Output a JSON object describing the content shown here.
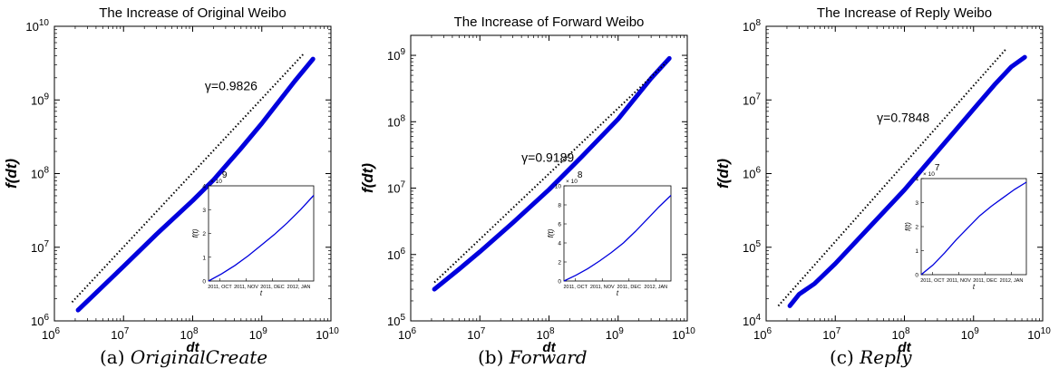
{
  "panels": [
    {
      "caption_label": "(a)",
      "caption_name": "OriginalCreate",
      "chart_data": {
        "type": "line",
        "title": "The Increase of Original Weibo",
        "xlabel": "dt",
        "ylabel": "f(dt)",
        "x_scale": "log",
        "y_scale": "log",
        "xlim": [
          1000000,
          10000000000
        ],
        "ylim": [
          1000000,
          10000000000
        ],
        "xticks": [
          {
            "v": 1000000,
            "base": "10",
            "exp": "6"
          },
          {
            "v": 10000000,
            "base": "10",
            "exp": "7"
          },
          {
            "v": 100000000,
            "base": "10",
            "exp": "8"
          },
          {
            "v": 1000000000,
            "base": "10",
            "exp": "9"
          },
          {
            "v": 10000000000,
            "base": "10",
            "exp": "10"
          }
        ],
        "yticks": [
          {
            "v": 1000000,
            "base": "10",
            "exp": "6"
          },
          {
            "v": 10000000,
            "base": "10",
            "exp": "7"
          },
          {
            "v": 100000000,
            "base": "10",
            "exp": "8"
          },
          {
            "v": 1000000000,
            "base": "10",
            "exp": "9"
          },
          {
            "v": 10000000000,
            "base": "10",
            "exp": "10"
          }
        ],
        "series": [
          {
            "style": "data",
            "color": "#0000dd",
            "x": [
              2200000,
              4000000,
              10000000,
              30000000,
              100000000,
              200000000,
              500000000,
              1000000000,
              3000000000,
              5500000000
            ],
            "y": [
              1400000,
              2400000,
              5500000,
              15000000,
              43000000,
              82000000,
              220000000,
              480000000,
              1800000000,
              3600000000
            ]
          },
          {
            "style": "fit",
            "color": "#000000",
            "x": [
              1800000,
              4000000000
            ],
            "y": [
              1800000,
              4200000000
            ]
          }
        ],
        "annotation": {
          "text": "γ=0.9826",
          "x": 150000000,
          "y": 1350000000
        },
        "inset": {
          "ylabel": "f(t)",
          "xlabel": "t",
          "xticklabels": [
            "2011, OCT",
            "2011, NOV",
            "2011, DEC",
            "2012, JAN"
          ],
          "ylim": [
            0,
            4000000000
          ],
          "y_multiplier": {
            "base": "× 10",
            "exp": "9"
          },
          "yticks": [
            {
              "v": 0,
              "label": "0"
            },
            {
              "v": 1000000000,
              "label": "1"
            },
            {
              "v": 2000000000,
              "label": "2"
            },
            {
              "v": 3000000000,
              "label": "3"
            },
            {
              "v": 4000000000,
              "label": "4"
            }
          ],
          "series_y": [
            0,
            300000000,
            650000000,
            1050000000,
            1500000000,
            1950000000,
            2450000000,
            3000000000,
            3600000000
          ],
          "series_x": [
            0,
            0.125,
            0.25,
            0.375,
            0.5,
            0.625,
            0.75,
            0.875,
            1.0
          ]
        }
      }
    },
    {
      "caption_label": "(b)",
      "caption_name": "Forward",
      "chart_data": {
        "type": "line",
        "title": "The Increase of Forward Weibo",
        "xlabel": "dt",
        "ylabel": "f(dt)",
        "x_scale": "log",
        "y_scale": "log",
        "xlim": [
          1000000,
          10000000000
        ],
        "ylim": [
          100000,
          2000000000
        ],
        "xticks": [
          {
            "v": 1000000,
            "base": "10",
            "exp": "6"
          },
          {
            "v": 10000000,
            "base": "10",
            "exp": "7"
          },
          {
            "v": 100000000,
            "base": "10",
            "exp": "8"
          },
          {
            "v": 1000000000,
            "base": "10",
            "exp": "9"
          },
          {
            "v": 10000000000,
            "base": "10",
            "exp": "10"
          }
        ],
        "yticks": [
          {
            "v": 100000,
            "base": "10",
            "exp": "5"
          },
          {
            "v": 1000000,
            "base": "10",
            "exp": "6"
          },
          {
            "v": 10000000,
            "base": "10",
            "exp": "7"
          },
          {
            "v": 100000000,
            "base": "10",
            "exp": "8"
          },
          {
            "v": 1000000000,
            "base": "10",
            "exp": "9"
          }
        ],
        "series": [
          {
            "style": "data",
            "color": "#0000dd",
            "x": [
              2200000,
              5000000,
              10000000,
              30000000,
              100000000,
              300000000,
              1000000000,
              3000000000,
              5500000000
            ],
            "y": [
              300000,
              600000,
              1100000,
              3000000,
              9500000,
              30000000,
              110000000,
              450000000,
              900000000
            ]
          },
          {
            "style": "fit",
            "color": "#000000",
            "x": [
              2200000,
              5000000000
            ],
            "y": [
              380000,
              780000000
            ]
          }
        ],
        "annotation": {
          "text": "γ=0.9189",
          "x": 40000000,
          "y": 25000000
        },
        "inset": {
          "ylabel": "f(t)",
          "xlabel": "t",
          "xticklabels": [
            "2011, OCT",
            "2011, NOV",
            "2011, DEC",
            "2012, JAN"
          ],
          "ylim": [
            0,
            1000000000
          ],
          "y_multiplier": {
            "base": "× 10",
            "exp": "8"
          },
          "yticks": [
            {
              "v": 0,
              "label": "0"
            },
            {
              "v": 200000000,
              "label": "2"
            },
            {
              "v": 400000000,
              "label": "4"
            },
            {
              "v": 600000000,
              "label": "6"
            },
            {
              "v": 800000000,
              "label": "8"
            },
            {
              "v": 1000000000,
              "label": "10"
            }
          ],
          "series_y": [
            0,
            60000000,
            130000000,
            210000000,
            300000000,
            400000000,
            520000000,
            650000000,
            780000000,
            900000000
          ],
          "series_x": [
            0,
            0.111,
            0.222,
            0.333,
            0.444,
            0.556,
            0.667,
            0.778,
            0.889,
            1.0
          ]
        }
      }
    },
    {
      "caption_label": "(c)",
      "caption_name": "Reply",
      "chart_data": {
        "type": "line",
        "title": "The Increase of Reply Weibo",
        "xlabel": "dt",
        "ylabel": "f(dt)",
        "x_scale": "log",
        "y_scale": "log",
        "xlim": [
          1000000,
          10000000000
        ],
        "ylim": [
          10000,
          100000000
        ],
        "xticks": [
          {
            "v": 1000000,
            "base": "10",
            "exp": "6"
          },
          {
            "v": 10000000,
            "base": "10",
            "exp": "7"
          },
          {
            "v": 100000000,
            "base": "10",
            "exp": "8"
          },
          {
            "v": 1000000000,
            "base": "10",
            "exp": "9"
          },
          {
            "v": 10000000000,
            "base": "10",
            "exp": "10"
          }
        ],
        "yticks": [
          {
            "v": 10000,
            "base": "10",
            "exp": "4"
          },
          {
            "v": 100000,
            "base": "10",
            "exp": "5"
          },
          {
            "v": 1000000,
            "base": "10",
            "exp": "6"
          },
          {
            "v": 10000000,
            "base": "10",
            "exp": "7"
          },
          {
            "v": 100000000,
            "base": "10",
            "exp": "8"
          }
        ],
        "series": [
          {
            "style": "data",
            "color": "#0000dd",
            "x": [
              2200000,
              3000000,
              5000000,
              10000000,
              30000000,
              100000000,
              300000000,
              1000000000,
              2000000000,
              3500000000,
              5500000000
            ],
            "y": [
              16000,
              23000,
              32000,
              60000,
              180000,
              600000,
              2000000,
              7500000,
              16000000,
              28000000,
              38000000
            ]
          },
          {
            "style": "fit",
            "color": "#000000",
            "x": [
              1500000,
              3000000000
            ],
            "y": [
              16000,
              50000000
            ]
          }
        ],
        "annotation": {
          "text": "γ=0.7848",
          "x": 40000000,
          "y": 5000000
        },
        "inset": {
          "ylabel": "f(t)",
          "xlabel": "t",
          "xticklabels": [
            "2011, OCT",
            "2011, NOV",
            "2011, DEC",
            "2012, JAN"
          ],
          "ylim": [
            0,
            40000000
          ],
          "y_multiplier": {
            "base": "× 10",
            "exp": "7"
          },
          "yticks": [
            {
              "v": 0,
              "label": "0"
            },
            {
              "v": 10000000,
              "label": "1"
            },
            {
              "v": 20000000,
              "label": "2"
            },
            {
              "v": 30000000,
              "label": "3"
            },
            {
              "v": 40000000,
              "label": "4"
            }
          ],
          "series_y": [
            0,
            4000000,
            9000000,
            14500000,
            19500000,
            24500000,
            28500000,
            32000000,
            35500000,
            38500000
          ],
          "series_x": [
            0,
            0.111,
            0.222,
            0.333,
            0.444,
            0.556,
            0.667,
            0.778,
            0.889,
            1.0
          ]
        }
      }
    }
  ]
}
